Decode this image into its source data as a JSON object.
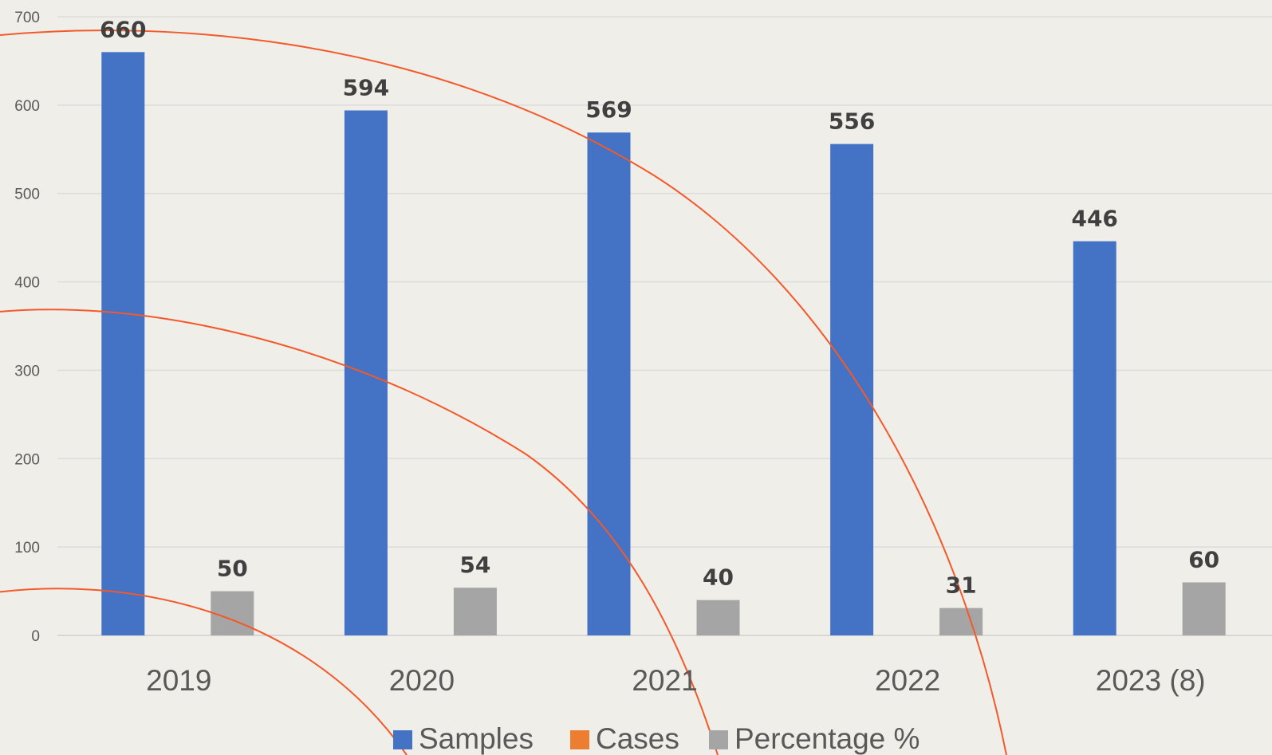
{
  "chart_data": {
    "type": "bar",
    "categories": [
      "2019",
      "2020",
      "2021",
      "2022",
      "2023 (8)"
    ],
    "series": [
      {
        "name": "Samples",
        "values": [
          660,
          594,
          569,
          556,
          446
        ],
        "color": "#4472c4"
      },
      {
        "name": "Cases",
        "values": [
          null,
          null,
          null,
          null,
          null
        ],
        "color": "#ed7d31"
      },
      {
        "name": "Percentage %",
        "values": [
          50,
          54,
          40,
          31,
          60
        ],
        "color": "#a5a5a5"
      }
    ],
    "ylim": [
      0,
      700
    ],
    "yticks": [
      "0",
      "100",
      "200",
      "300",
      "400",
      "500",
      "600",
      "700"
    ],
    "grid": true,
    "legend_position": "bottom",
    "decoration_color": "#f4592a"
  }
}
